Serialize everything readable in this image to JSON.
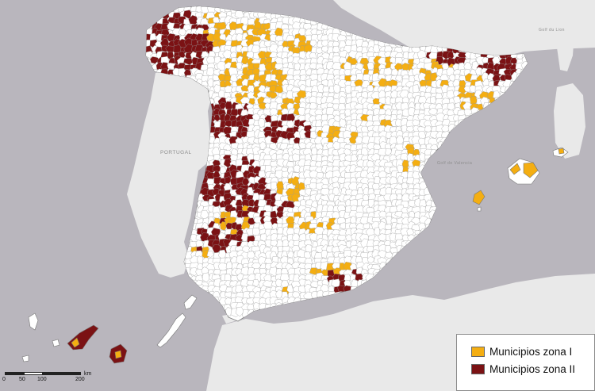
{
  "map": {
    "colors": {
      "sea": "#b9b6bd",
      "land": "#e9e9e9",
      "zone_none": "#ffffff",
      "zone_1": "#f4ae12",
      "zone_2": "#7b1214",
      "border": "#9a9a9a"
    },
    "place_labels": {
      "portugal": "PORTUGAL",
      "gulf_of_lion": "Golf du Lion",
      "gulf_valencia": "Golf de Valencia"
    },
    "legend": [
      {
        "label": "Municipios zona I",
        "color": "#f4ae12"
      },
      {
        "label": "Municipios zona II",
        "color": "#7b1214"
      }
    ],
    "scale_bar": {
      "ticks": [
        "0",
        "50",
        "100",
        "200"
      ],
      "unit": "km"
    }
  }
}
